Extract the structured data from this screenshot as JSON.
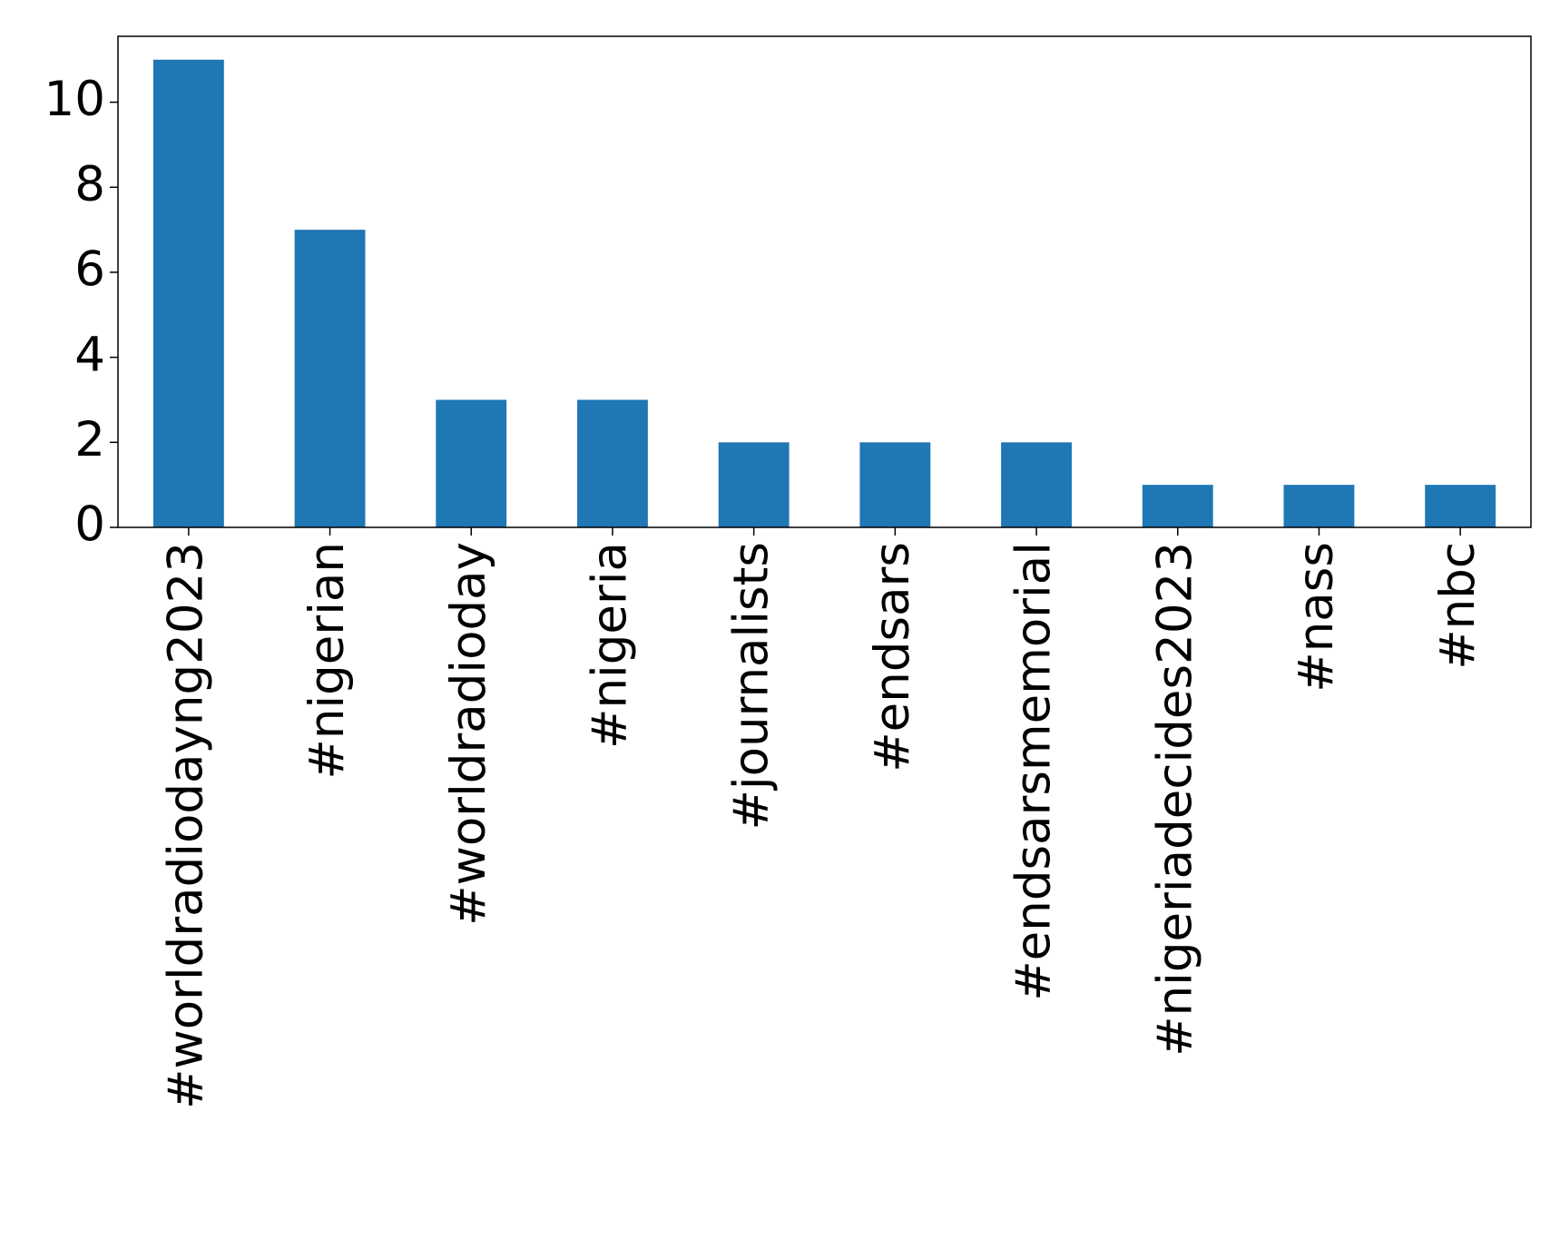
{
  "chart_data": {
    "type": "bar",
    "categories": [
      "#worldradiodayng2023",
      "#nigerian",
      "#worldradioday",
      "#nigeria",
      "#journalists",
      "#endsars",
      "#endsarsmemorial",
      "#nigeriadecides2023",
      "#nass",
      "#nbc"
    ],
    "values": [
      11,
      7,
      3,
      3,
      2,
      2,
      2,
      1,
      1,
      1
    ],
    "color": "#1f77b4",
    "ylim": [
      0,
      11.55
    ],
    "yticks": [
      0,
      2,
      4,
      6,
      8,
      10
    ],
    "grid": false
  }
}
